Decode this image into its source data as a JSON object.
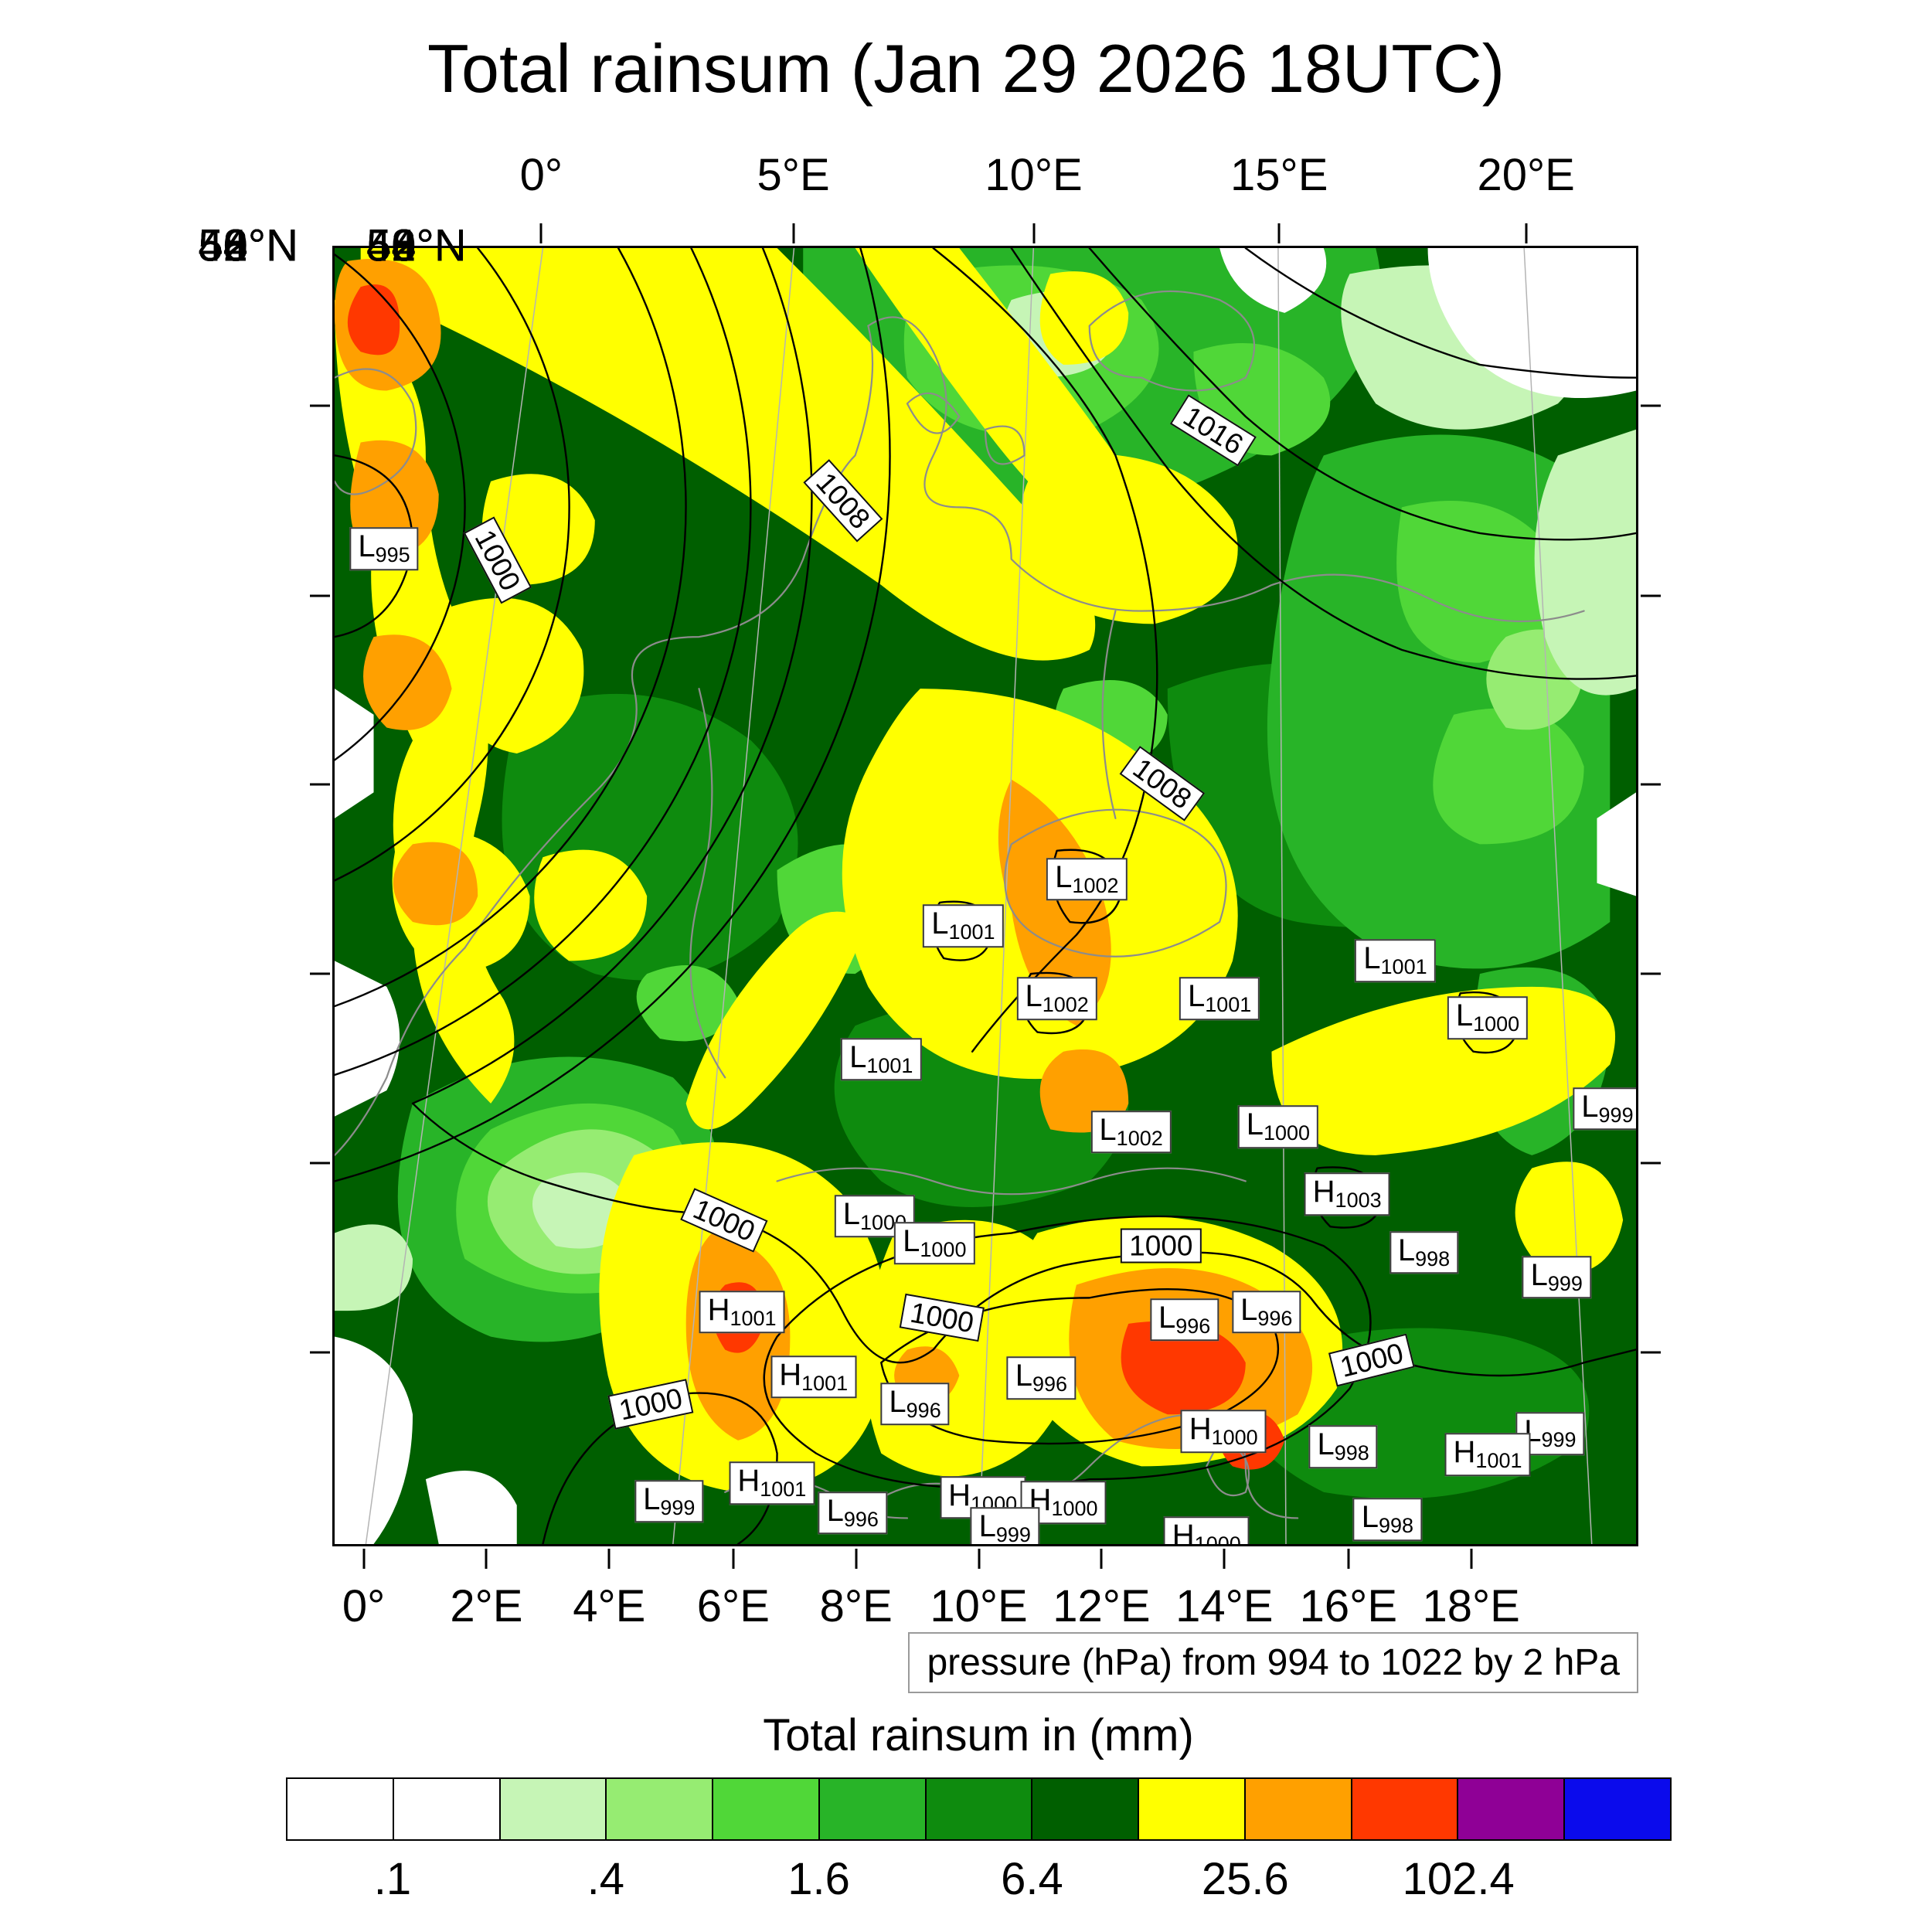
{
  "title": "Total rainsum (Jan 29 2026 18UTC)",
  "pressure_note": "pressure (hPa) from 994 to 1022 by 2 hPa",
  "legend_title": "Total rainsum in (mm)",
  "chart_data": {
    "type": "heatmap",
    "title": "Total rainsum (Jan 29 2026 18UTC)",
    "variable": "Total rainsum in (mm)",
    "overlay": "pressure (hPa) from 994 to 1022 by 2 hPa",
    "isobar_range": {
      "from": 994,
      "to": 1022,
      "step": 2
    },
    "axes": {
      "top": [
        {
          "label": "0°",
          "pos": 16.0
        },
        {
          "label": "5°E",
          "pos": 35.3
        },
        {
          "label": "10°E",
          "pos": 53.7
        },
        {
          "label": "15°E",
          "pos": 72.5
        },
        {
          "label": "20°E",
          "pos": 91.4
        }
      ],
      "bottom": [
        {
          "label": "0°",
          "pos": 2.4
        },
        {
          "label": "2°E",
          "pos": 11.8
        },
        {
          "label": "4°E",
          "pos": 21.2
        },
        {
          "label": "6°E",
          "pos": 30.7
        },
        {
          "label": "8°E",
          "pos": 40.1
        },
        {
          "label": "10°E",
          "pos": 49.5
        },
        {
          "label": "12°E",
          "pos": 58.9
        },
        {
          "label": "14°E",
          "pos": 68.3
        },
        {
          "label": "16°E",
          "pos": 77.8
        },
        {
          "label": "18°E",
          "pos": 87.2
        }
      ],
      "lat": [
        {
          "label": "56°N",
          "pos": 12.3
        },
        {
          "label": "54°N",
          "pos": 26.9
        },
        {
          "label": "52°N",
          "pos": 41.4
        },
        {
          "label": "50°N",
          "pos": 56.0
        },
        {
          "label": "48°N",
          "pos": 70.5
        },
        {
          "label": "46°N",
          "pos": 85.1
        }
      ]
    },
    "colorbar": {
      "title": "Total rainsum in (mm)",
      "colors": [
        "#ffffff",
        "#ffffff",
        "#c6f5b6",
        "#96ec72",
        "#50d738",
        "#28b428",
        "#0e8b0e",
        "#005f00",
        "#ffff00",
        "#ffa000",
        "#ff3800",
        "#8f0096",
        "#0b0bec"
      ],
      "thresholds": [
        0.1,
        0.2,
        0.4,
        0.8,
        1.6,
        3.2,
        6.4,
        12.8,
        25.6,
        51.2,
        102.4,
        204.8
      ],
      "tick_labels": [
        ".1",
        ".4",
        "1.6",
        "6.4",
        "25.6",
        "102.4"
      ],
      "tick_boundary_index": [
        1,
        3,
        5,
        7,
        9,
        11
      ]
    },
    "pressure_centers": [
      {
        "letter": "L",
        "value": "995",
        "x": 3.8,
        "y": 23.2
      },
      {
        "letter": "L",
        "value": "1002",
        "x": 57.8,
        "y": 48.7
      },
      {
        "letter": "L",
        "value": "1001",
        "x": 48.3,
        "y": 52.3
      },
      {
        "letter": "L",
        "value": "1002",
        "x": 55.5,
        "y": 57.9
      },
      {
        "letter": "L",
        "value": "1001",
        "x": 68.0,
        "y": 57.9
      },
      {
        "letter": "L",
        "value": "1001",
        "x": 81.5,
        "y": 55.0
      },
      {
        "letter": "L",
        "value": "1000",
        "x": 88.6,
        "y": 59.4
      },
      {
        "letter": "L",
        "value": "1001",
        "x": 42.0,
        "y": 62.6
      },
      {
        "letter": "L",
        "value": "999",
        "x": 97.8,
        "y": 66.4
      },
      {
        "letter": "L",
        "value": "1002",
        "x": 61.2,
        "y": 68.2
      },
      {
        "letter": "L",
        "value": "1000",
        "x": 72.5,
        "y": 67.8
      },
      {
        "letter": "H",
        "value": "1003",
        "x": 77.8,
        "y": 73.0
      },
      {
        "letter": "L",
        "value": "1000",
        "x": 41.5,
        "y": 74.7
      },
      {
        "letter": "L",
        "value": "1000",
        "x": 46.1,
        "y": 76.8
      },
      {
        "letter": "L",
        "value": "998",
        "x": 83.7,
        "y": 77.5
      },
      {
        "letter": "L",
        "value": "999",
        "x": 93.9,
        "y": 79.4
      },
      {
        "letter": "H",
        "value": "1001",
        "x": 31.3,
        "y": 82.1
      },
      {
        "letter": "L",
        "value": "996",
        "x": 65.3,
        "y": 82.7
      },
      {
        "letter": "L",
        "value": "996",
        "x": 71.6,
        "y": 82.1
      },
      {
        "letter": "H",
        "value": "1001",
        "x": 36.8,
        "y": 87.1
      },
      {
        "letter": "L",
        "value": "996",
        "x": 44.6,
        "y": 89.2
      },
      {
        "letter": "L",
        "value": "996",
        "x": 54.3,
        "y": 87.2
      },
      {
        "letter": "H",
        "value": "1000",
        "x": 68.3,
        "y": 91.3
      },
      {
        "letter": "L",
        "value": "998",
        "x": 77.5,
        "y": 92.5
      },
      {
        "letter": "L",
        "value": "999",
        "x": 93.4,
        "y": 91.5
      },
      {
        "letter": "H",
        "value": "1001",
        "x": 88.6,
        "y": 93.1
      },
      {
        "letter": "L",
        "value": "999",
        "x": 25.7,
        "y": 96.7
      },
      {
        "letter": "H",
        "value": "1001",
        "x": 33.6,
        "y": 95.3
      },
      {
        "letter": "L",
        "value": "996",
        "x": 39.8,
        "y": 97.6
      },
      {
        "letter": "H",
        "value": "1000",
        "x": 49.8,
        "y": 96.4
      },
      {
        "letter": "H",
        "value": "1000",
        "x": 56.0,
        "y": 96.8
      },
      {
        "letter": "L",
        "value": "999",
        "x": 51.5,
        "y": 98.8
      },
      {
        "letter": "H",
        "value": "1000",
        "x": 67.0,
        "y": 99.5
      },
      {
        "letter": "L",
        "value": "998",
        "x": 80.9,
        "y": 98.1
      }
    ],
    "isobar_labels": [
      {
        "text": "1000",
        "x": 12.5,
        "y": 24.1,
        "rot": 62
      },
      {
        "text": "1008",
        "x": 39.1,
        "y": 19.5,
        "rot": 48
      },
      {
        "text": "1016",
        "x": 67.5,
        "y": 14.1,
        "rot": 32
      },
      {
        "text": "1008",
        "x": 63.6,
        "y": 41.3,
        "rot": 36
      },
      {
        "text": "1000",
        "x": 29.9,
        "y": 75.0,
        "rot": 24
      },
      {
        "text": "1000",
        "x": 63.5,
        "y": 77.0,
        "rot": 0
      },
      {
        "text": "1000",
        "x": 46.7,
        "y": 82.5,
        "rot": 10
      },
      {
        "text": "1000",
        "x": 79.7,
        "y": 85.8,
        "rot": -14
      },
      {
        "text": "1000",
        "x": 24.3,
        "y": 89.2,
        "rot": -12
      }
    ]
  }
}
